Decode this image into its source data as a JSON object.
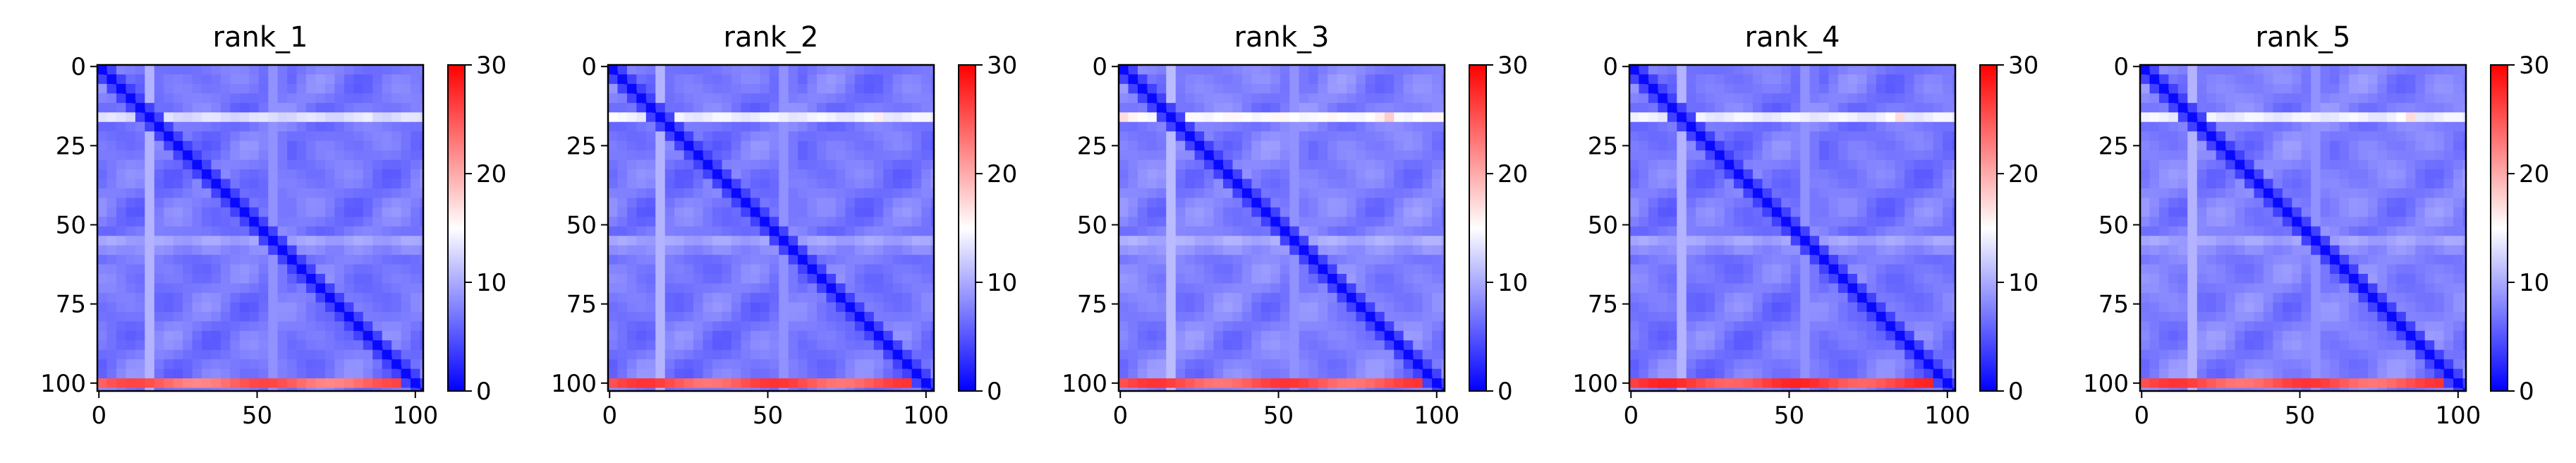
{
  "chart_data": [
    {
      "type": "heatmap",
      "title": "rank_1",
      "n": 103,
      "xlim": [
        0,
        102
      ],
      "ylim": [
        102,
        0
      ],
      "xticks": [
        0,
        50,
        100
      ],
      "yticks": [
        0,
        25,
        50,
        75,
        100
      ],
      "color_scale": {
        "min": 0,
        "max": 30,
        "ticks": [
          0,
          10,
          20,
          30
        ],
        "colormap": "bwr",
        "low": "#0000ff",
        "mid": "#ffffff",
        "high": "#ff0000"
      },
      "pattern": {
        "diagonal_value": 0.5,
        "background_value": 7,
        "bright_row_bands": [
          {
            "index": 16,
            "value": 13
          },
          {
            "index": 56,
            "value": 11
          }
        ],
        "bright_column_bands": [
          {
            "index": 16,
            "value": 10.5
          },
          {
            "index": 56,
            "value": 10
          }
        ],
        "bottom_rows": {
          "from": 99,
          "to": 102,
          "value": 24
        },
        "hotspots": [
          {
            "row": 16,
            "col": 84,
            "value": 16
          }
        ]
      }
    },
    {
      "type": "heatmap",
      "title": "rank_2",
      "n": 103,
      "xlim": [
        0,
        102
      ],
      "ylim": [
        102,
        0
      ],
      "xticks": [
        0,
        50,
        100
      ],
      "yticks": [
        0,
        25,
        50,
        75,
        100
      ],
      "color_scale": {
        "min": 0,
        "max": 30,
        "ticks": [
          0,
          10,
          20,
          30
        ],
        "colormap": "bwr",
        "low": "#0000ff",
        "mid": "#ffffff",
        "high": "#ff0000"
      },
      "pattern": {
        "diagonal_value": 0.5,
        "background_value": 7,
        "bright_row_bands": [
          {
            "index": 16,
            "value": 14
          },
          {
            "index": 56,
            "value": 11
          }
        ],
        "bright_column_bands": [
          {
            "index": 16,
            "value": 10.5
          },
          {
            "index": 56,
            "value": 10
          }
        ],
        "bottom_rows": {
          "from": 99,
          "to": 102,
          "value": 25
        },
        "hotspots": [
          {
            "row": 16,
            "col": 84,
            "value": 18
          },
          {
            "row": 16,
            "col": 2,
            "value": 17
          }
        ]
      }
    },
    {
      "type": "heatmap",
      "title": "rank_3",
      "n": 103,
      "xlim": [
        0,
        102
      ],
      "ylim": [
        102,
        0
      ],
      "xticks": [
        0,
        50,
        100
      ],
      "yticks": [
        0,
        25,
        50,
        75,
        100
      ],
      "color_scale": {
        "min": 0,
        "max": 30,
        "ticks": [
          0,
          10,
          20,
          30
        ],
        "colormap": "bwr",
        "low": "#0000ff",
        "mid": "#ffffff",
        "high": "#ff0000"
      },
      "pattern": {
        "diagonal_value": 0.5,
        "background_value": 7.5,
        "bright_row_bands": [
          {
            "index": 16,
            "value": 15
          },
          {
            "index": 56,
            "value": 11.5
          }
        ],
        "bright_column_bands": [
          {
            "index": 16,
            "value": 11
          },
          {
            "index": 56,
            "value": 10
          }
        ],
        "bottom_rows": {
          "from": 99,
          "to": 102,
          "value": 25
        },
        "hotspots": [
          {
            "row": 16,
            "col": 84,
            "value": 20
          },
          {
            "row": 16,
            "col": 2,
            "value": 19
          }
        ]
      }
    },
    {
      "type": "heatmap",
      "title": "rank_4",
      "n": 103,
      "xlim": [
        0,
        102
      ],
      "ylim": [
        102,
        0
      ],
      "xticks": [
        0,
        50,
        100
      ],
      "yticks": [
        0,
        25,
        50,
        75,
        100
      ],
      "color_scale": {
        "min": 0,
        "max": 30,
        "ticks": [
          0,
          10,
          20,
          30
        ],
        "colormap": "bwr",
        "low": "#0000ff",
        "mid": "#ffffff",
        "high": "#ff0000"
      },
      "pattern": {
        "diagonal_value": 0.5,
        "background_value": 7,
        "bright_row_bands": [
          {
            "index": 16,
            "value": 14
          },
          {
            "index": 56,
            "value": 11
          }
        ],
        "bright_column_bands": [
          {
            "index": 16,
            "value": 10.5
          },
          {
            "index": 56,
            "value": 10
          }
        ],
        "bottom_rows": {
          "from": 98,
          "to": 102,
          "value": 26
        },
        "hotspots": [
          {
            "row": 16,
            "col": 84,
            "value": 19
          }
        ]
      }
    },
    {
      "type": "heatmap",
      "title": "rank_5",
      "n": 103,
      "xlim": [
        0,
        102
      ],
      "ylim": [
        102,
        0
      ],
      "xticks": [
        0,
        50,
        100
      ],
      "yticks": [
        0,
        25,
        50,
        75,
        100
      ],
      "color_scale": {
        "min": 0,
        "max": 30,
        "ticks": [
          0,
          10,
          20,
          30
        ],
        "colormap": "bwr",
        "low": "#0000ff",
        "mid": "#ffffff",
        "high": "#ff0000"
      },
      "pattern": {
        "diagonal_value": 0.5,
        "background_value": 7.5,
        "bright_row_bands": [
          {
            "index": 16,
            "value": 14
          },
          {
            "index": 56,
            "value": 11
          }
        ],
        "bright_column_bands": [
          {
            "index": 16,
            "value": 10.5
          },
          {
            "index": 56,
            "value": 10
          }
        ],
        "bottom_rows": {
          "from": 98,
          "to": 102,
          "value": 25
        },
        "hotspots": [
          {
            "row": 16,
            "col": 84,
            "value": 19
          }
        ]
      }
    }
  ]
}
